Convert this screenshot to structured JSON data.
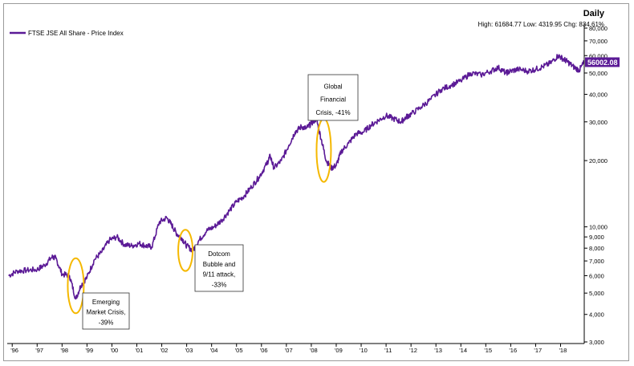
{
  "chart_data": {
    "type": "line",
    "y_scale": "log",
    "ylim": [
      3000,
      80000
    ],
    "frequency_label": "Daily",
    "stats_label": "High: 61684.77 Low: 4319.95 Chg: 834.61%",
    "legend": "FTSE JSE All Share - Price Index",
    "last_value_label": "56002.08",
    "y_ticks": [
      {
        "value": 80000,
        "label": "80,000"
      },
      {
        "value": 70000,
        "label": "70,000"
      },
      {
        "value": 60000,
        "label": "60,000"
      },
      {
        "value": 50000,
        "label": "50,000"
      },
      {
        "value": 40000,
        "label": "40,000"
      },
      {
        "value": 30000,
        "label": "30,000"
      },
      {
        "value": 20000,
        "label": "20,000"
      },
      {
        "value": 10000,
        "label": "10,000"
      },
      {
        "value": 9000,
        "label": "9,000"
      },
      {
        "value": 8000,
        "label": "8,000"
      },
      {
        "value": 7000,
        "label": "7,000"
      },
      {
        "value": 6000,
        "label": "6,000"
      },
      {
        "value": 5000,
        "label": "5,000"
      },
      {
        "value": 4000,
        "label": "4,000"
      },
      {
        "value": 3000,
        "label": "3,000"
      }
    ],
    "x_ticks": [
      {
        "year": 1996,
        "label": "'96"
      },
      {
        "year": 1997,
        "label": "'97"
      },
      {
        "year": 1998,
        "label": "'98"
      },
      {
        "year": 1999,
        "label": "'99"
      },
      {
        "year": 2000,
        "label": "'00"
      },
      {
        "year": 2001,
        "label": "'01"
      },
      {
        "year": 2002,
        "label": "'02"
      },
      {
        "year": 2003,
        "label": "'03"
      },
      {
        "year": 2004,
        "label": "'04"
      },
      {
        "year": 2005,
        "label": "'05"
      },
      {
        "year": 2006,
        "label": "'06"
      },
      {
        "year": 2007,
        "label": "'07"
      },
      {
        "year": 2008,
        "label": "'08"
      },
      {
        "year": 2009,
        "label": "'09"
      },
      {
        "year": 2010,
        "label": "'10"
      },
      {
        "year": 2011,
        "label": "'11"
      },
      {
        "year": 2012,
        "label": "'12"
      },
      {
        "year": 2013,
        "label": "'13"
      },
      {
        "year": 2014,
        "label": "'14"
      },
      {
        "year": 2015,
        "label": "'15"
      },
      {
        "year": 2016,
        "label": "'16"
      },
      {
        "year": 2017,
        "label": "'17"
      },
      {
        "year": 2018,
        "label": "'18"
      }
    ],
    "series": [
      {
        "color": "#5b1a96",
        "x": [
          1995.85,
          1996.2,
          1996.6,
          1997.0,
          1997.3,
          1997.6,
          1997.75,
          1998.0,
          1998.3,
          1998.55,
          1998.75,
          1999.0,
          1999.3,
          1999.6,
          1999.9,
          2000.2,
          2000.5,
          2000.8,
          2001.1,
          2001.35,
          2001.6,
          2001.9,
          2002.2,
          2002.4,
          2002.6,
          2002.8,
          2003.0,
          2003.25,
          2003.5,
          2003.8,
          2004.1,
          2004.4,
          2004.7,
          2005.0,
          2005.3,
          2005.6,
          2005.9,
          2006.2,
          2006.35,
          2006.5,
          2006.8,
          2007.1,
          2007.35,
          2007.6,
          2007.8,
          2008.0,
          2008.2,
          2008.4,
          2008.6,
          2008.8,
          2009.0,
          2009.2,
          2009.5,
          2009.8,
          2010.1,
          2010.4,
          2010.7,
          2011.0,
          2011.3,
          2011.6,
          2011.8,
          2012.0,
          2012.4,
          2012.8,
          2013.2,
          2013.6,
          2014.0,
          2014.4,
          2014.8,
          2015.2,
          2015.5,
          2015.8,
          2016.0,
          2016.3,
          2016.7,
          2017.0,
          2017.3,
          2017.6,
          2017.9,
          2018.1,
          2018.3,
          2018.55,
          2018.75,
          2018.95
        ],
        "values": [
          6000,
          6300,
          6350,
          6400,
          6700,
          7300,
          7200,
          6100,
          6000,
          4700,
          5400,
          5900,
          7100,
          7700,
          8700,
          9000,
          8300,
          8200,
          8400,
          8200,
          8100,
          10500,
          11000,
          10200,
          9300,
          8900,
          8200,
          7800,
          8700,
          9600,
          10000,
          10700,
          11800,
          13000,
          13800,
          15200,
          16800,
          19200,
          21000,
          18500,
          20000,
          23500,
          27000,
          28500,
          28000,
          29500,
          31000,
          25000,
          20000,
          18500,
          19000,
          22000,
          24000,
          26500,
          27000,
          29000,
          30500,
          32000,
          31000,
          30000,
          31500,
          32500,
          35000,
          38000,
          42000,
          44000,
          46000,
          50000,
          49000,
          51000,
          53000,
          50000,
          51000,
          52000,
          51000,
          52000,
          53500,
          55500,
          60000,
          58000,
          56000,
          53000,
          51500,
          56002
        ]
      }
    ],
    "annotations": [
      {
        "key": "emerging",
        "lines": [
          "Emerging",
          "Market Crisis,",
          "-39%"
        ]
      },
      {
        "key": "dotcom",
        "lines": [
          "Dotcom",
          "Bubble and",
          "9/11 attack,",
          "-33%"
        ]
      },
      {
        "key": "gfc",
        "lines": [
          "Global",
          "Financial",
          "Crisis, -41%"
        ]
      }
    ],
    "highlight_color": "#f5b800"
  }
}
